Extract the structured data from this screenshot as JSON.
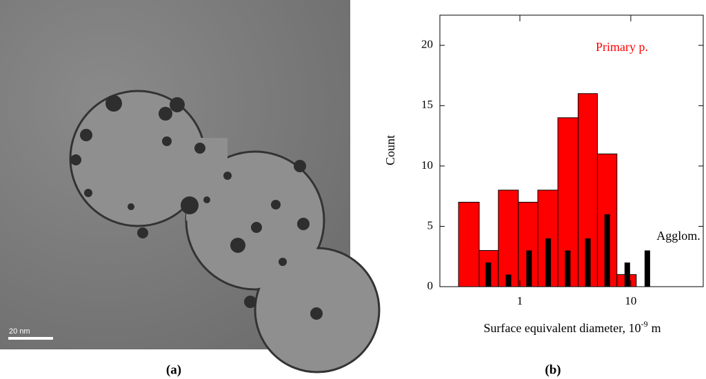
{
  "panel_a": {
    "label": "(a)",
    "scale_bar": "20 nm"
  },
  "chart_data": {
    "type": "histogram",
    "label": "(b)",
    "bins": [
      0.28,
      0.43,
      0.64,
      0.97,
      1.45,
      2.2,
      3.35,
      5.0,
      7.5,
      9.2,
      11.2
    ],
    "series": [
      {
        "name": "Primary p.",
        "color": "#ff0000",
        "values": [
          7,
          3,
          8,
          7,
          8,
          14,
          16,
          11,
          1,
          1
        ]
      },
      {
        "name": "Agglom.",
        "color": "#000000",
        "x": [
          0.52,
          0.79,
          1.21,
          1.8,
          2.7,
          4.1,
          6.13,
          9.3,
          14.1
        ],
        "values": [
          2,
          1,
          3,
          4,
          3,
          4,
          6,
          2,
          3
        ]
      }
    ],
    "xlabel": {
      "text": "Surface equivalent diameter, 10",
      "superscript": "-9",
      "unit": "m"
    },
    "ylabel": "Count",
    "xscale": "log",
    "xlim": [
      0.19,
      45
    ],
    "ylim": [
      0,
      22.5
    ],
    "xticks": [
      1,
      10
    ],
    "yticks": [
      0,
      5,
      10,
      15,
      20
    ]
  }
}
